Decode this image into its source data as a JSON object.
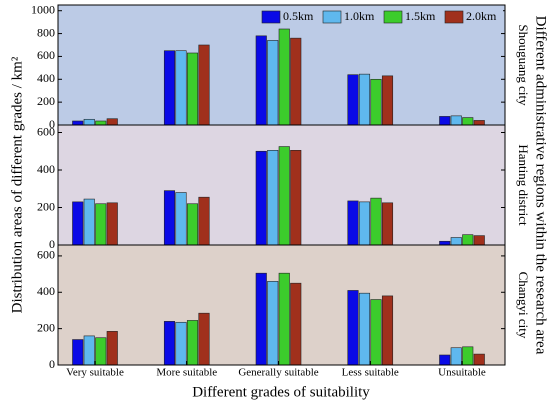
{
  "figure": {
    "ylabel": "Distribution areas of different grades / km²",
    "right_label": "Different administrative regions within the research area"
  },
  "chart_data": [
    {
      "type": "bar",
      "title": "Shouguang city",
      "background": "#bccbe6",
      "legend": "upper right",
      "series": [
        {
          "name": "0.5km",
          "color": "#0a0ae6",
          "values": [
            35,
            650,
            780,
            440,
            75
          ]
        },
        {
          "name": "1.0km",
          "color": "#5fb8ee",
          "values": [
            50,
            650,
            740,
            445,
            80
          ]
        },
        {
          "name": "1.5km",
          "color": "#3ccc2c",
          "values": [
            35,
            630,
            840,
            400,
            65
          ]
        },
        {
          "name": "2.0km",
          "color": "#a0301c",
          "values": [
            55,
            700,
            760,
            430,
            40
          ]
        }
      ],
      "ylim": [
        0,
        1050
      ],
      "yticks": [
        0,
        200,
        400,
        600,
        800,
        1000
      ]
    },
    {
      "type": "bar",
      "title": "Hanting district",
      "background": "#ddd6e2",
      "series": [
        {
          "values": [
            230,
            290,
            500,
            235,
            20
          ]
        },
        {
          "values": [
            245,
            280,
            505,
            230,
            40
          ]
        },
        {
          "values": [
            220,
            220,
            525,
            250,
            55
          ]
        },
        {
          "values": [
            225,
            255,
            505,
            225,
            50
          ]
        }
      ],
      "ylim": [
        0,
        640
      ],
      "yticks": [
        0,
        200,
        400,
        600
      ]
    },
    {
      "type": "bar",
      "title": "Changyi city",
      "background": "#ddd1ca",
      "xlabel": "Different grades of suitability",
      "categories": [
        "Very suitable",
        "More suitable",
        "Generally suitable",
        "Less suitable",
        "Unsuitable"
      ],
      "series": [
        {
          "values": [
            140,
            240,
            505,
            410,
            55
          ]
        },
        {
          "values": [
            160,
            235,
            460,
            395,
            95
          ]
        },
        {
          "values": [
            150,
            245,
            505,
            360,
            100
          ]
        },
        {
          "values": [
            185,
            285,
            450,
            380,
            60
          ]
        }
      ],
      "ylim": [
        0,
        660
      ],
      "yticks": [
        0,
        200,
        400,
        600
      ]
    }
  ]
}
